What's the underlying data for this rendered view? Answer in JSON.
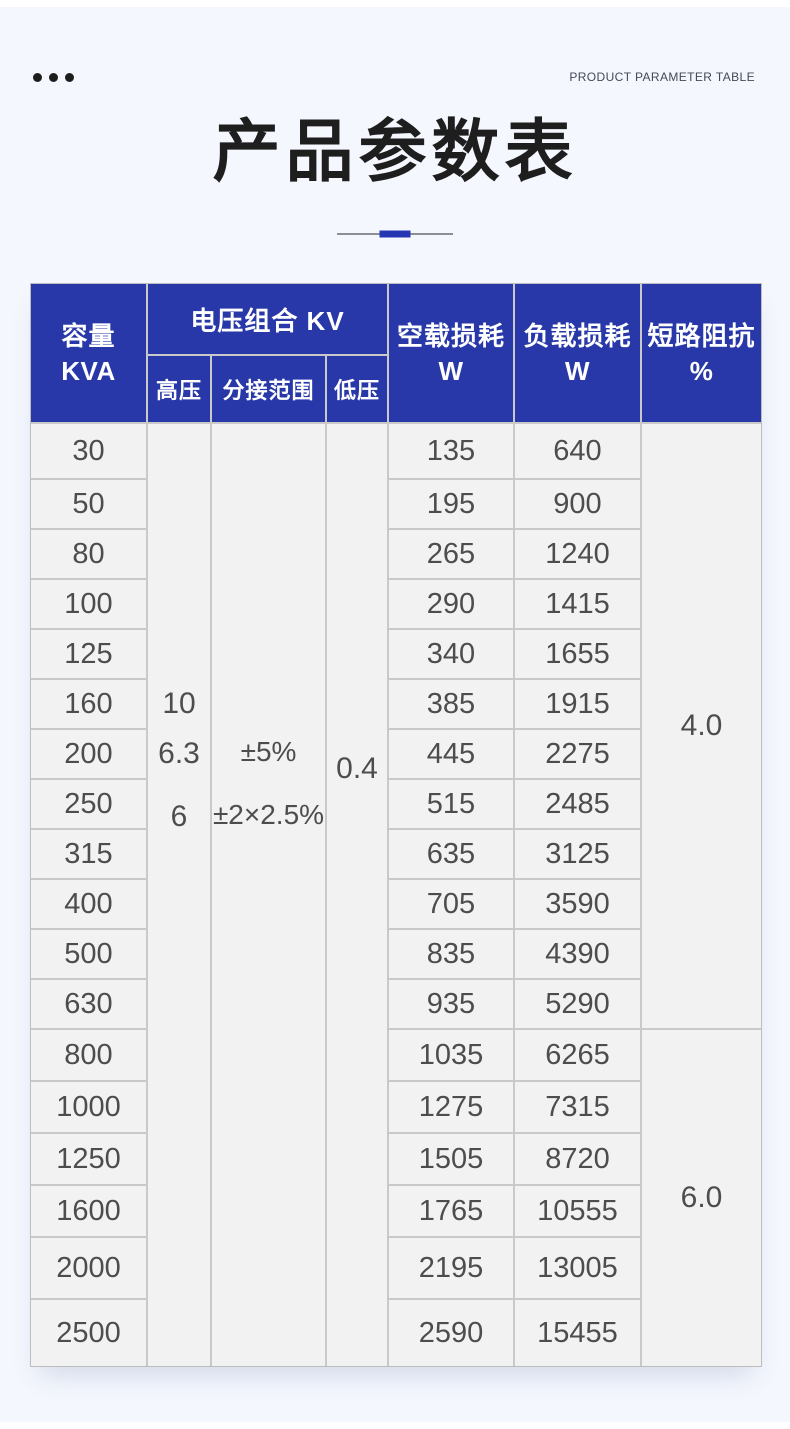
{
  "page": {
    "eyebrow": "PRODUCT PARAMETER TABLE",
    "title": "产品参数表"
  },
  "colors": {
    "header_blue": "#2838a8",
    "accent_blue": "#2635b2",
    "page_background": "#f4f7fd",
    "cell_background": "#f2f2f2",
    "grid_line": "#c9c9c9",
    "body_text": "#4d4d4d"
  },
  "table": {
    "header": {
      "capacity": [
        "容量",
        "KVA"
      ],
      "voltage_group": "电压组合 KV",
      "high_voltage": "高压",
      "tap_range": "分接范围",
      "low_voltage": "低压",
      "no_load_loss": [
        "空载损耗",
        "W"
      ],
      "load_loss": [
        "负载损耗",
        "W"
      ],
      "impedance": [
        "短路阻抗",
        "%"
      ]
    },
    "merged": {
      "high_voltage": [
        "10",
        "6.3",
        "6"
      ],
      "tap_range": [
        "±5%",
        "±2×2.5%"
      ],
      "low_voltage": "0.4",
      "impedance_top": "4.0",
      "impedance_bottom": "6.0"
    },
    "rows": [
      {
        "capacity": "30",
        "no_load": "135",
        "load": "640"
      },
      {
        "capacity": "50",
        "no_load": "195",
        "load": "900"
      },
      {
        "capacity": "80",
        "no_load": "265",
        "load": "1240"
      },
      {
        "capacity": "100",
        "no_load": "290",
        "load": "1415"
      },
      {
        "capacity": "125",
        "no_load": "340",
        "load": "1655"
      },
      {
        "capacity": "160",
        "no_load": "385",
        "load": "1915"
      },
      {
        "capacity": "200",
        "no_load": "445",
        "load": "2275"
      },
      {
        "capacity": "250",
        "no_load": "515",
        "load": "2485"
      },
      {
        "capacity": "315",
        "no_load": "635",
        "load": "3125"
      },
      {
        "capacity": "400",
        "no_load": "705",
        "load": "3590"
      },
      {
        "capacity": "500",
        "no_load": "835",
        "load": "4390"
      },
      {
        "capacity": "630",
        "no_load": "935",
        "load": "5290"
      },
      {
        "capacity": "800",
        "no_load": "1035",
        "load": "6265"
      },
      {
        "capacity": "1000",
        "no_load": "1275",
        "load": "7315"
      },
      {
        "capacity": "1250",
        "no_load": "1505",
        "load": "8720"
      },
      {
        "capacity": "1600",
        "no_load": "1765",
        "load": "10555"
      },
      {
        "capacity": "2000",
        "no_load": "2195",
        "load": "13005"
      },
      {
        "capacity": "2500",
        "no_load": "2590",
        "load": "15455"
      }
    ]
  }
}
